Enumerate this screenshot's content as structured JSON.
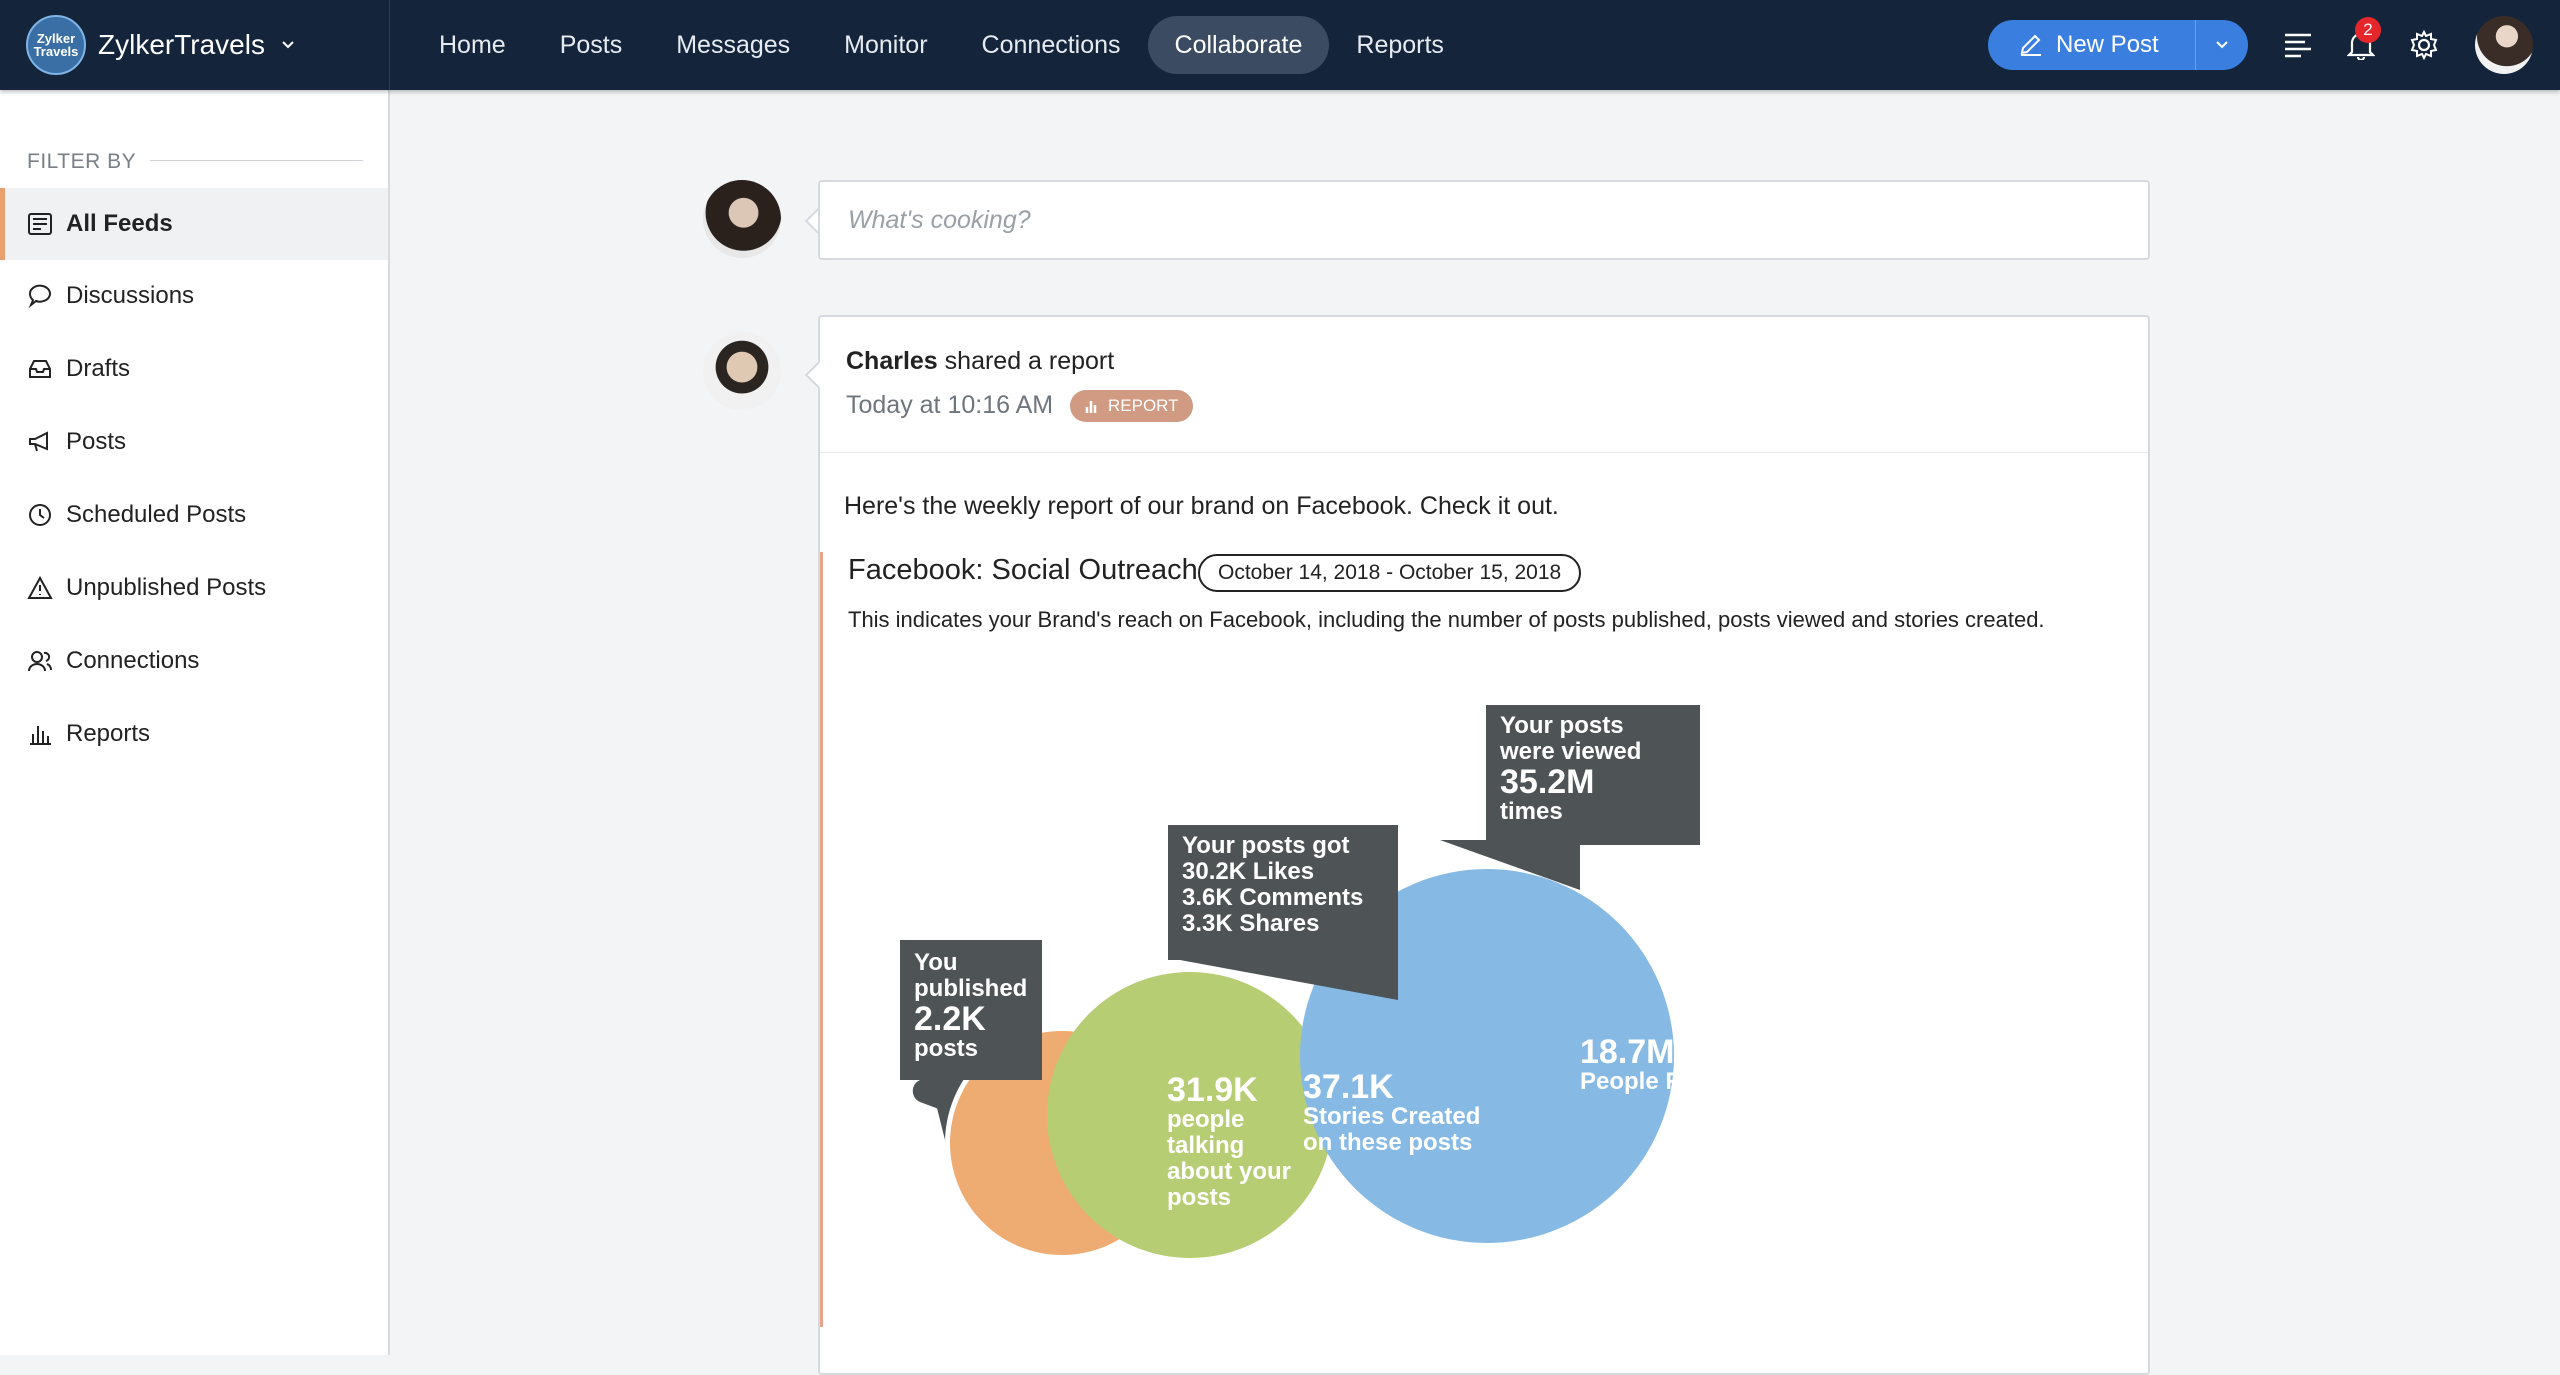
{
  "app": {
    "brand": "ZylkerTravels",
    "logo_text": "Zylker Travels",
    "nav": [
      "Home",
      "Posts",
      "Messages",
      "Monitor",
      "Connections",
      "Collaborate",
      "Reports"
    ],
    "active_nav": "Collaborate",
    "new_post_label": "New Post",
    "notification_count": "2"
  },
  "sidebar": {
    "heading": "FILTER BY",
    "items": [
      {
        "label": "All Feeds",
        "icon": "feed-icon"
      },
      {
        "label": "Discussions",
        "icon": "chat-bubble-icon"
      },
      {
        "label": "Drafts",
        "icon": "drafts-icon"
      },
      {
        "label": "Posts",
        "icon": "megaphone-icon"
      },
      {
        "label": "Scheduled Posts",
        "icon": "clock-icon"
      },
      {
        "label": "Unpublished Posts",
        "icon": "warning-icon"
      },
      {
        "label": "Connections",
        "icon": "users-icon"
      },
      {
        "label": "Reports",
        "icon": "bar-chart-icon"
      }
    ],
    "active_index": 0
  },
  "composer": {
    "placeholder": "What's cooking?"
  },
  "post": {
    "author": "Charles",
    "action": " shared a report",
    "time": "Today at 10:16 AM",
    "tag": "REPORT",
    "message": "Here's the weekly report of our brand on Facebook.  Check it out.",
    "report": {
      "title": "Facebook: Social Outreach",
      "date_range": "October 14, 2018 - October 15, 2018",
      "description": "This indicates your Brand's reach on Facebook, including the number of posts published, posts viewed and stories created.",
      "colors": {
        "orange": "#eeab72",
        "green": "#b7cd73",
        "blue": "#86bae4",
        "callout": "#4e5356"
      },
      "published": {
        "l1": "You",
        "l2": "published",
        "value": "2.2K",
        "l3": "posts"
      },
      "engagement": {
        "l1": "Your posts got",
        "l2": "30.2K Likes",
        "l3": "3.6K Comments",
        "l4": "3.3K Shares"
      },
      "views": {
        "l1": "Your posts",
        "l2": "were viewed",
        "value": "35.2M",
        "l3": "times"
      },
      "talking": {
        "value": "31.9K",
        "l1": "people",
        "l2": "talking",
        "l3": "about your",
        "l4": "posts"
      },
      "stories": {
        "value": "37.1K",
        "l1": "Stories Created",
        "l2": "on these posts"
      },
      "reached": {
        "value": "18.7M",
        "l1": "People Reached"
      }
    }
  }
}
